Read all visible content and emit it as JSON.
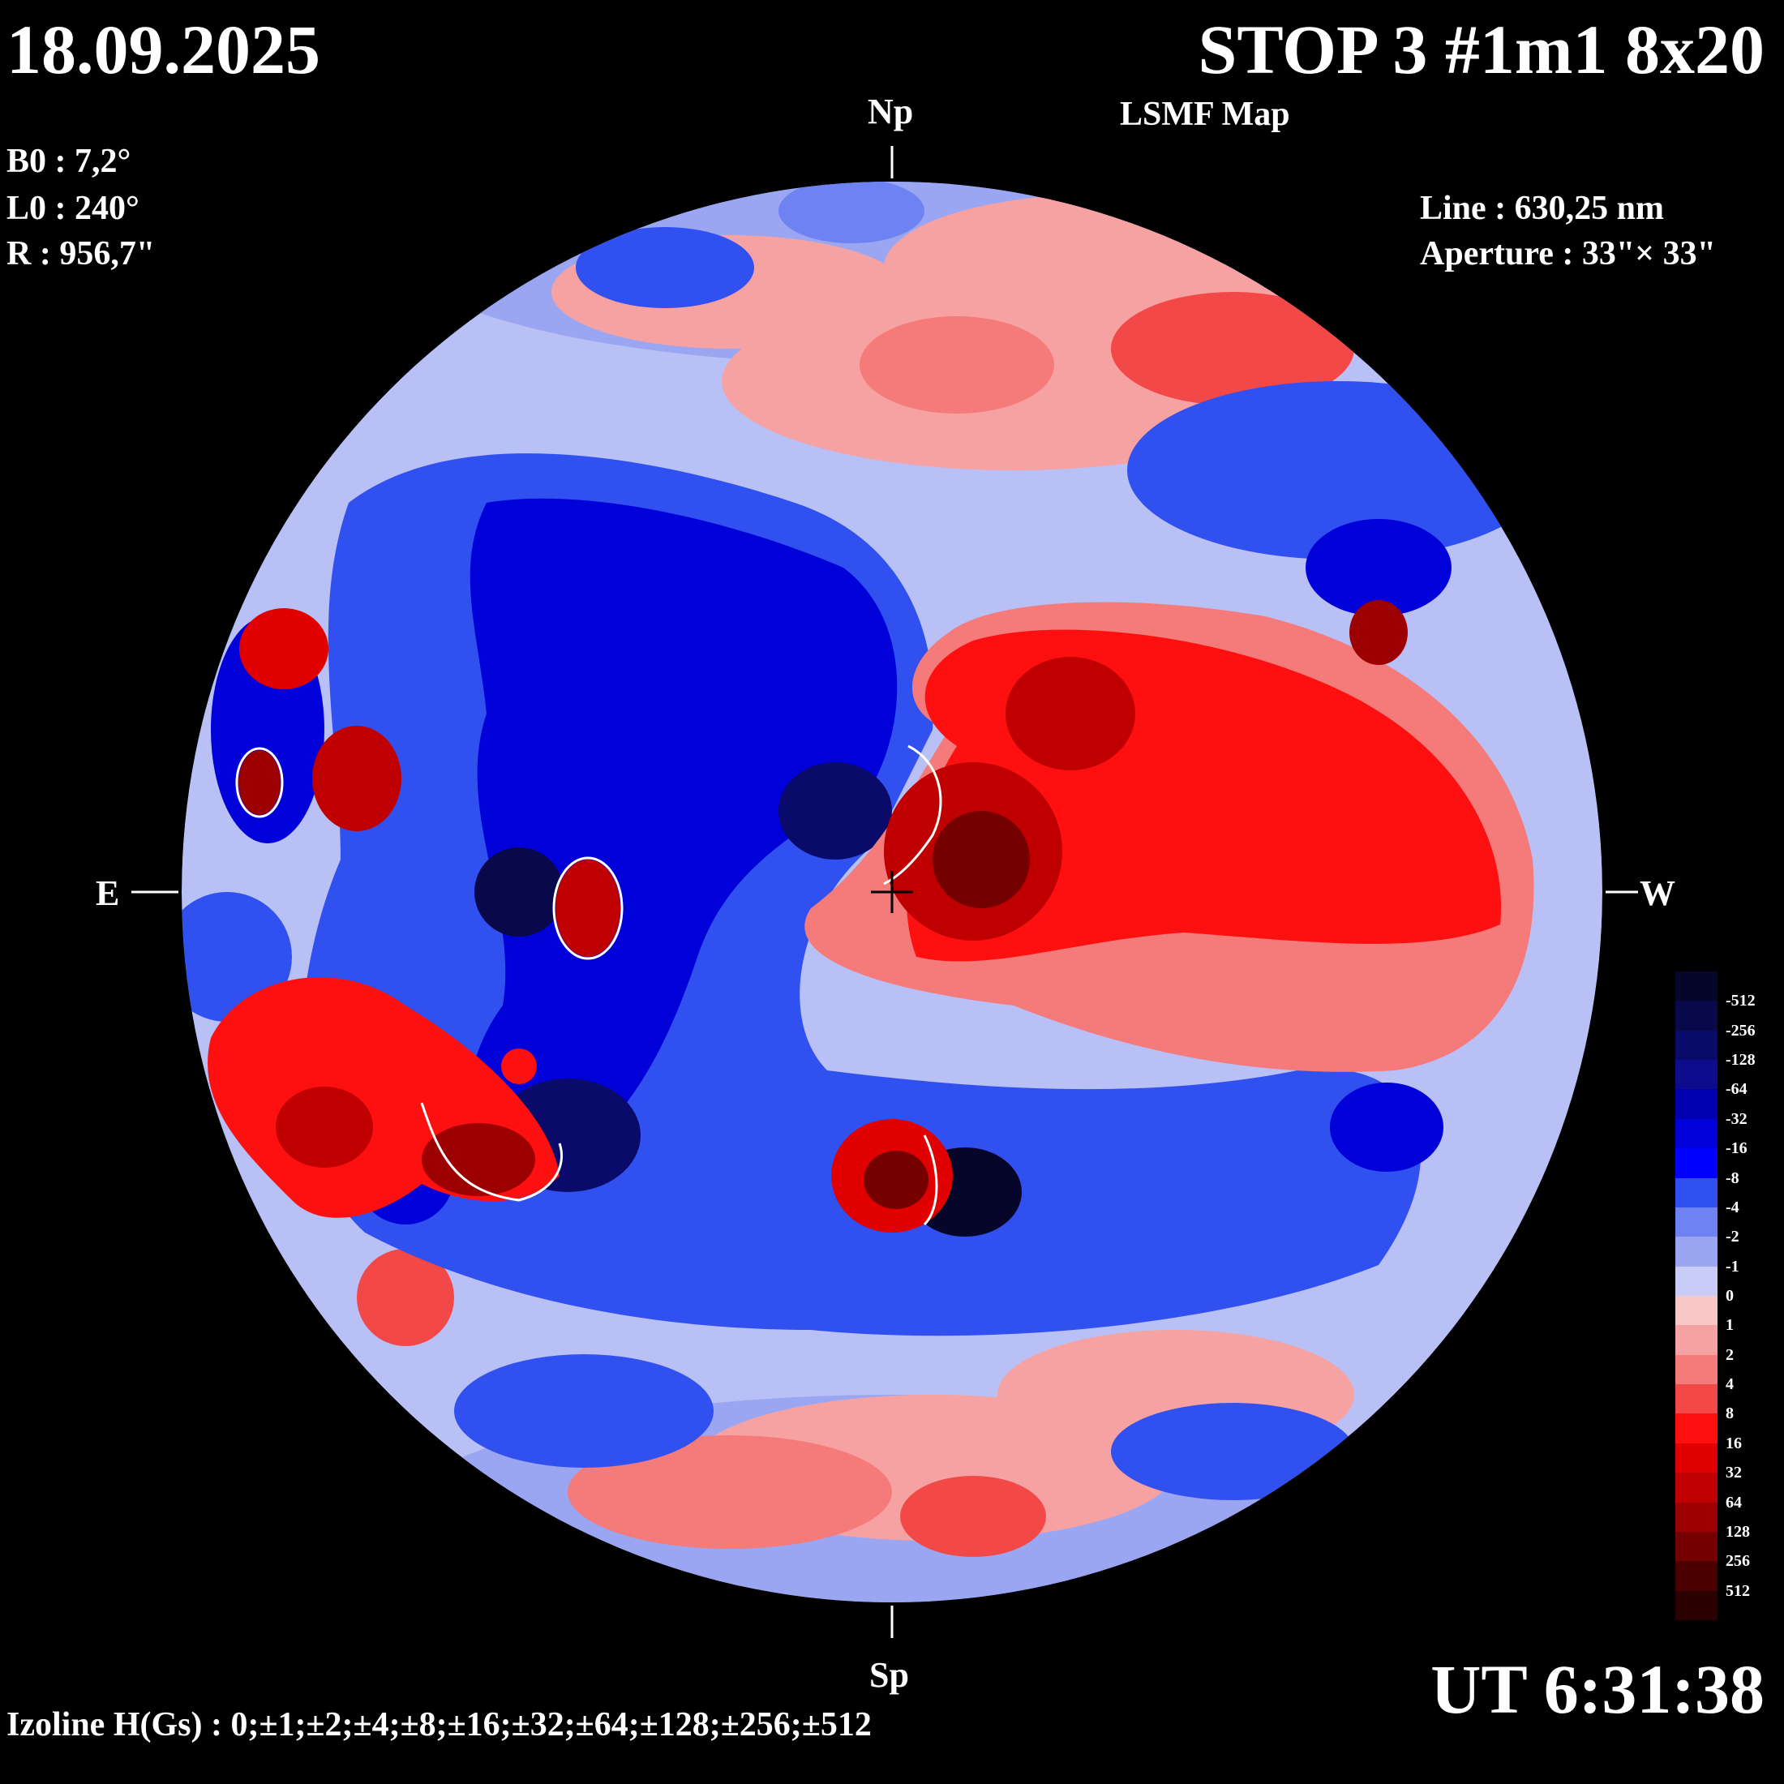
{
  "header": {
    "date": "18.09.2025",
    "title": "STOP 3 #1m1 8x20",
    "subtitle": "LSMF  Map"
  },
  "parameters": {
    "b0": "B0 : 7,2°",
    "l0": "L0 : 240°",
    "r": "R  : 956,7\""
  },
  "instrument": {
    "line": "Line :  630,25 nm",
    "aperture": "Aperture : 33\"× 33\""
  },
  "directions": {
    "north": "Np",
    "south": "Sp",
    "east": "E",
    "west": "W"
  },
  "time": "UT 6:31:38",
  "isoline_caption": "Izoline H(Gs) : 0;±1;±2;±4;±8;±16;±32;±64;±128;±256;±512",
  "color_scale": {
    "labels": [
      "-512",
      "-256",
      "-128",
      "-64",
      "-32",
      "-16",
      "-8",
      "-4",
      "-2",
      "-1",
      "0",
      "1",
      "2",
      "4",
      "8",
      "16",
      "32",
      "64",
      "128",
      "256",
      "512"
    ],
    "colors": [
      "#06062a",
      "#08084a",
      "#0a0a6a",
      "#0c0c8c",
      "#0000b0",
      "#0000d8",
      "#0000ff",
      "#3050f0",
      "#6f82f2",
      "#9aa6f2",
      "#c8ccf6",
      "#f8c8c8",
      "#f7a2a2",
      "#f57a7a",
      "#f24848",
      "#ff1010",
      "#e00000",
      "#c00000",
      "#9c0000",
      "#740000",
      "#4a0000",
      "#2a0000"
    ]
  },
  "map": {
    "colors": {
      "background": "#9aa6f2",
      "blue_strong": "#0000d8",
      "blue_mid": "#3050f0",
      "blue_dark": "#0a0a6a",
      "red_light": "#f7a2a2",
      "red_mid": "#ff1010",
      "red_dark": "#9c0000",
      "contour": "#ffffff"
    }
  }
}
